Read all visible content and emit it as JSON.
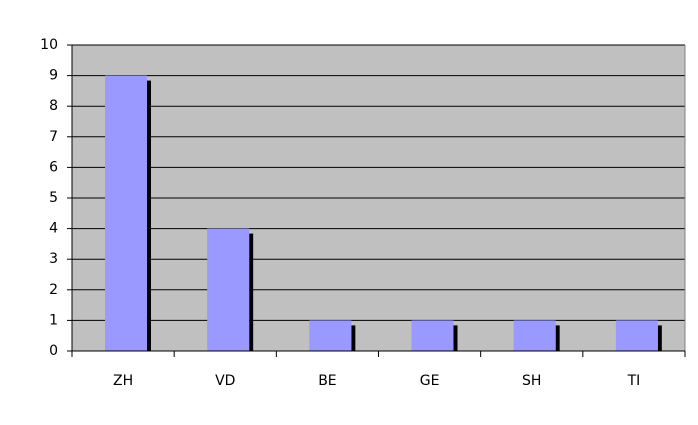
{
  "chart_data": {
    "type": "bar",
    "categories": [
      "ZH",
      "VD",
      "BE",
      "GE",
      "SH",
      "TI"
    ],
    "values": [
      9,
      4,
      1,
      1,
      1,
      1
    ],
    "color": "#9999ff",
    "ylim": [
      0,
      10
    ],
    "yticks": [
      0,
      1,
      2,
      3,
      4,
      5,
      6,
      7,
      8,
      9,
      10
    ],
    "grid": true
  }
}
